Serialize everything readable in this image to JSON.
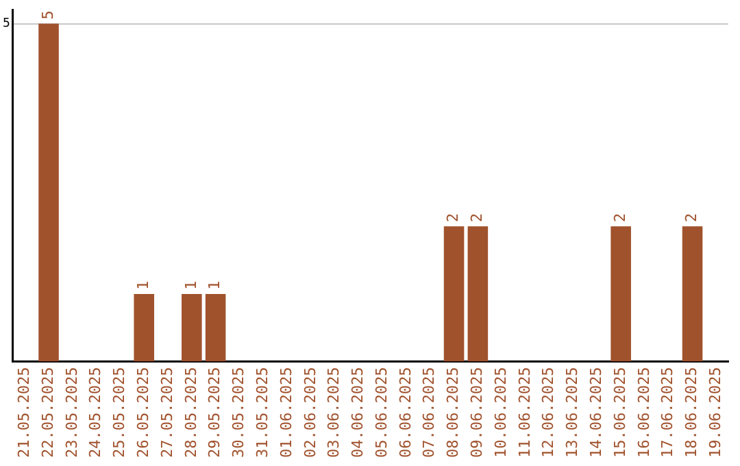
{
  "chart_data": {
    "type": "bar",
    "categories": [
      "21.05.2025",
      "22.05.2025",
      "23.05.2025",
      "24.05.2025",
      "25.05.2025",
      "26.05.2025",
      "27.05.2025",
      "28.05.2025",
      "29.05.2025",
      "30.05.2025",
      "31.05.2025",
      "01.06.2025",
      "02.06.2025",
      "03.06.2025",
      "04.06.2025",
      "05.06.2025",
      "06.06.2025",
      "07.06.2025",
      "08.06.2025",
      "09.06.2025",
      "10.06.2025",
      "11.06.2025",
      "12.06.2025",
      "13.06.2025",
      "14.06.2025",
      "15.06.2025",
      "16.06.2025",
      "17.06.2025",
      "18.06.2025",
      "19.06.2025"
    ],
    "values": [
      0,
      5,
      0,
      0,
      0,
      1,
      0,
      1,
      1,
      0,
      0,
      0,
      0,
      0,
      0,
      0,
      0,
      0,
      2,
      2,
      0,
      0,
      0,
      0,
      0,
      2,
      0,
      0,
      2,
      0
    ],
    "value_labels": [
      null,
      "5",
      null,
      null,
      null,
      "1",
      null,
      "1",
      "1",
      null,
      null,
      null,
      null,
      null,
      null,
      null,
      null,
      null,
      "2",
      "2",
      null,
      null,
      null,
      null,
      null,
      "2",
      null,
      null,
      "2",
      null
    ],
    "color": "#a0522d",
    "ylim": [
      0,
      5.2
    ],
    "yticks": [
      5
    ],
    "grid": "y",
    "legend": false
  }
}
